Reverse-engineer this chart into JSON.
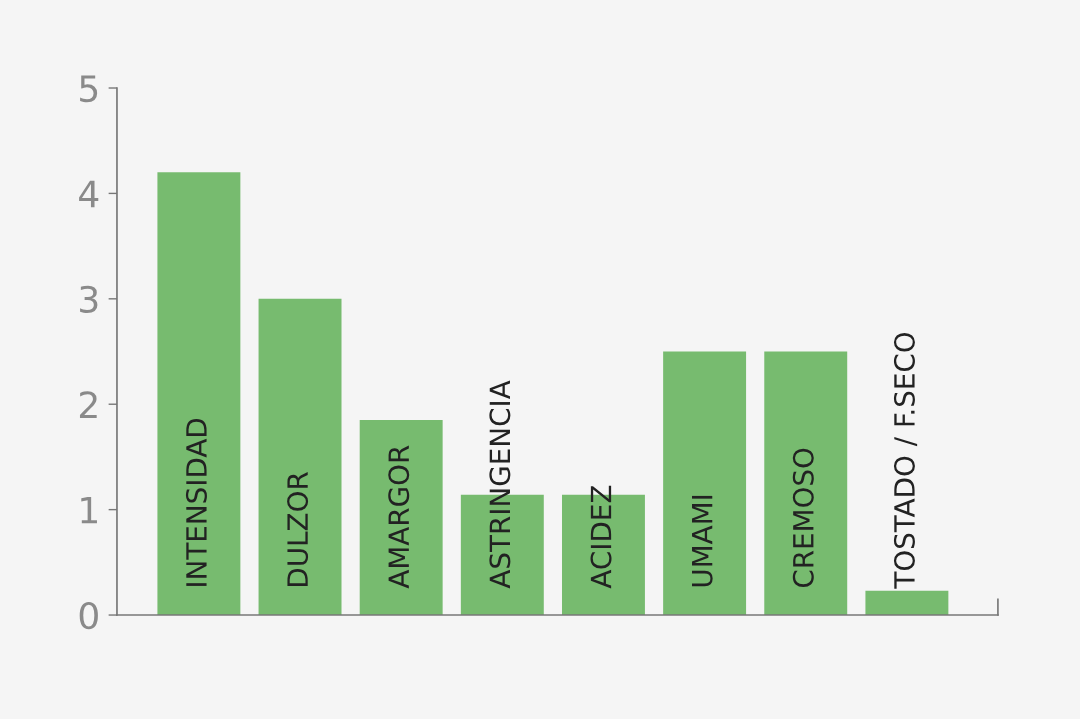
{
  "chart_data": {
    "type": "bar",
    "categories": [
      "INTENSIDAD",
      "DULZOR",
      "AMARGOR",
      "ASTRINGENCIA",
      "ACIDEZ",
      "UMAMI",
      "CREMOSO",
      "TOSTADO / F.SECO"
    ],
    "values": [
      4.2,
      3,
      1.85,
      1.14,
      1.14,
      2.5,
      2.5,
      0.23
    ],
    "color": "#77bb6f",
    "ylim": [
      0,
      5
    ],
    "yticks": [
      0,
      1,
      2,
      3,
      4,
      5
    ],
    "grid": false,
    "legend": false
  }
}
